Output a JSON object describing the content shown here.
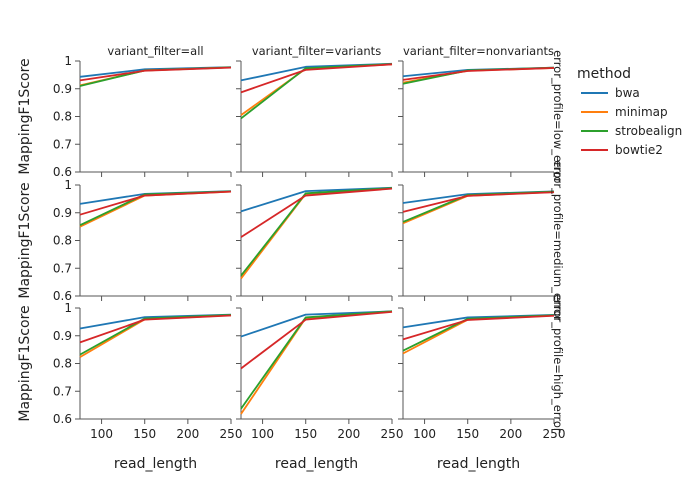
{
  "chart_data": {
    "type": "line",
    "x_axis_title": "read_length",
    "y_axis_title": "MappingF1Score",
    "col_titles": [
      "variant_filter=all",
      "variant_filter=variants",
      "variant_filter=nonvariants"
    ],
    "row_titles": [
      "error_profile=low_error",
      "error_profile=medium_error",
      "error_profile=high_error"
    ],
    "legend_title": "method",
    "legend_position": "right",
    "grid": false,
    "xlim": [
      75,
      250
    ],
    "ylim": [
      0.6,
      1.0
    ],
    "x_ticks": [
      100,
      150,
      200,
      250
    ],
    "y_ticks": [
      0.6,
      0.7,
      0.8,
      0.9,
      1
    ],
    "series_style": [
      {
        "name": "bwa",
        "color": "#1f77b4"
      },
      {
        "name": "minimap",
        "color": "#ff7f0e"
      },
      {
        "name": "strobealign",
        "color": "#2ca02c"
      },
      {
        "name": "bowtie2",
        "color": "#d62728"
      }
    ],
    "x": [
      75,
      150,
      250
    ],
    "panels": [
      [
        {
          "bwa": [
            0.943,
            0.97,
            0.978
          ],
          "minimap": [
            0.912,
            0.966,
            0.977
          ],
          "strobealign": [
            0.91,
            0.966,
            0.977
          ],
          "bowtie2": [
            0.93,
            0.965,
            0.976
          ]
        },
        {
          "bwa": [
            0.93,
            0.979,
            0.99
          ],
          "minimap": [
            0.805,
            0.972,
            0.988
          ],
          "strobealign": [
            0.793,
            0.974,
            0.989
          ],
          "bowtie2": [
            0.887,
            0.968,
            0.988
          ]
        },
        {
          "bwa": [
            0.945,
            0.968,
            0.976
          ],
          "minimap": [
            0.922,
            0.965,
            0.975
          ],
          "strobealign": [
            0.918,
            0.966,
            0.976
          ],
          "bowtie2": [
            0.932,
            0.964,
            0.975
          ]
        }
      ],
      [
        {
          "bwa": [
            0.932,
            0.968,
            0.978
          ],
          "minimap": [
            0.85,
            0.962,
            0.976
          ],
          "strobealign": [
            0.855,
            0.966,
            0.977
          ],
          "bowtie2": [
            0.893,
            0.962,
            0.976
          ]
        },
        {
          "bwa": [
            0.905,
            0.978,
            0.99
          ],
          "minimap": [
            0.663,
            0.968,
            0.988
          ],
          "strobealign": [
            0.673,
            0.97,
            0.989
          ],
          "bowtie2": [
            0.812,
            0.962,
            0.987
          ]
        },
        {
          "bwa": [
            0.935,
            0.967,
            0.977
          ],
          "minimap": [
            0.862,
            0.961,
            0.975
          ],
          "strobealign": [
            0.867,
            0.964,
            0.976
          ],
          "bowtie2": [
            0.903,
            0.961,
            0.974
          ]
        }
      ],
      [
        {
          "bwa": [
            0.926,
            0.967,
            0.976
          ],
          "minimap": [
            0.823,
            0.959,
            0.974
          ],
          "strobealign": [
            0.832,
            0.962,
            0.975
          ],
          "bowtie2": [
            0.876,
            0.958,
            0.973
          ]
        },
        {
          "bwa": [
            0.897,
            0.976,
            0.988
          ],
          "minimap": [
            0.618,
            0.964,
            0.987
          ],
          "strobealign": [
            0.637,
            0.966,
            0.988
          ],
          "bowtie2": [
            0.782,
            0.958,
            0.986
          ]
        },
        {
          "bwa": [
            0.93,
            0.966,
            0.975
          ],
          "minimap": [
            0.836,
            0.958,
            0.973
          ],
          "strobealign": [
            0.846,
            0.961,
            0.974
          ],
          "bowtie2": [
            0.887,
            0.957,
            0.972
          ]
        }
      ]
    ]
  }
}
